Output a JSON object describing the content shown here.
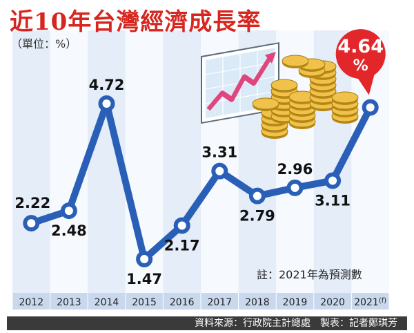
{
  "title": "近10年台灣經濟成長率",
  "unit_label": "（單位：%）",
  "note": "註：2021年為預測數",
  "source": "資料來源：行政院主計總處　製表：記者鄭琪芳",
  "highlight": {
    "value": "4.64",
    "unit": "%"
  },
  "colors": {
    "line": "#2a5fb8",
    "title": "#d7261f",
    "band": "#e4edf8",
    "band_alt": "#f6f9fd",
    "axis_strip": "#c9d8ec",
    "highlight": "#e2262a",
    "footer": "#3a3a3a"
  },
  "chart_data": {
    "type": "line",
    "title": "近10年台灣經濟成長率",
    "ylabel": "（單位：%）",
    "xlabel": "",
    "categories": [
      "2012",
      "2013",
      "2014",
      "2015",
      "2016",
      "2017",
      "2018",
      "2019",
      "2020",
      "2021"
    ],
    "category_suffix": [
      "",
      "",
      "",
      "",
      "",
      "",
      "",
      "",
      "",
      "(f)"
    ],
    "values": [
      2.22,
      2.48,
      4.72,
      1.47,
      2.17,
      3.31,
      2.79,
      2.96,
      3.11,
      4.64
    ],
    "value_labels": [
      "2.22",
      "2.48",
      "4.72",
      "1.47",
      "2.17",
      "3.31",
      "2.79",
      "2.96",
      "3.11",
      ""
    ],
    "label_position": [
      "above",
      "below",
      "above",
      "below",
      "below",
      "above",
      "below",
      "above",
      "below",
      "none"
    ],
    "ylim": [
      1.0,
      5.0
    ],
    "grid": false,
    "legend": "none"
  }
}
